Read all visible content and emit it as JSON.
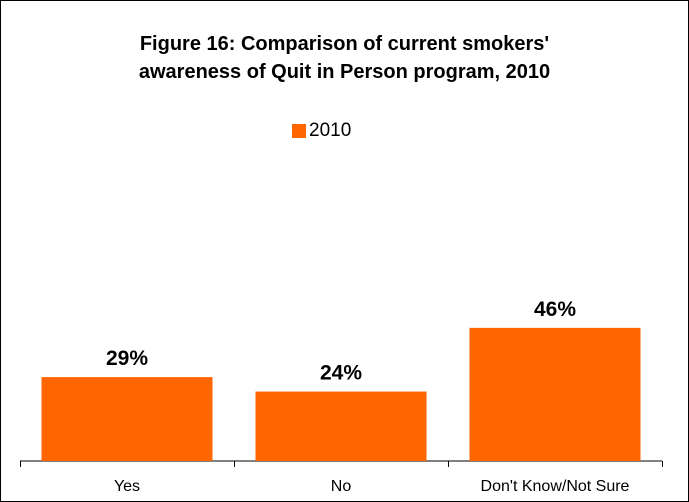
{
  "chart_data": {
    "type": "bar",
    "title_lines": [
      "Figure 16: Comparison of current smokers'",
      "awareness of Quit in Person program, 2010"
    ],
    "categories": [
      "Yes",
      "No",
      "Don't Know/Not Sure"
    ],
    "series": [
      {
        "name": "2010",
        "values": [
          29,
          24,
          46
        ],
        "labels": [
          "29%",
          "24%",
          "46%"
        ],
        "color": "#ff6600"
      }
    ],
    "ylim": [
      0,
      80
    ],
    "legend_position": "top-center",
    "grid": false
  }
}
